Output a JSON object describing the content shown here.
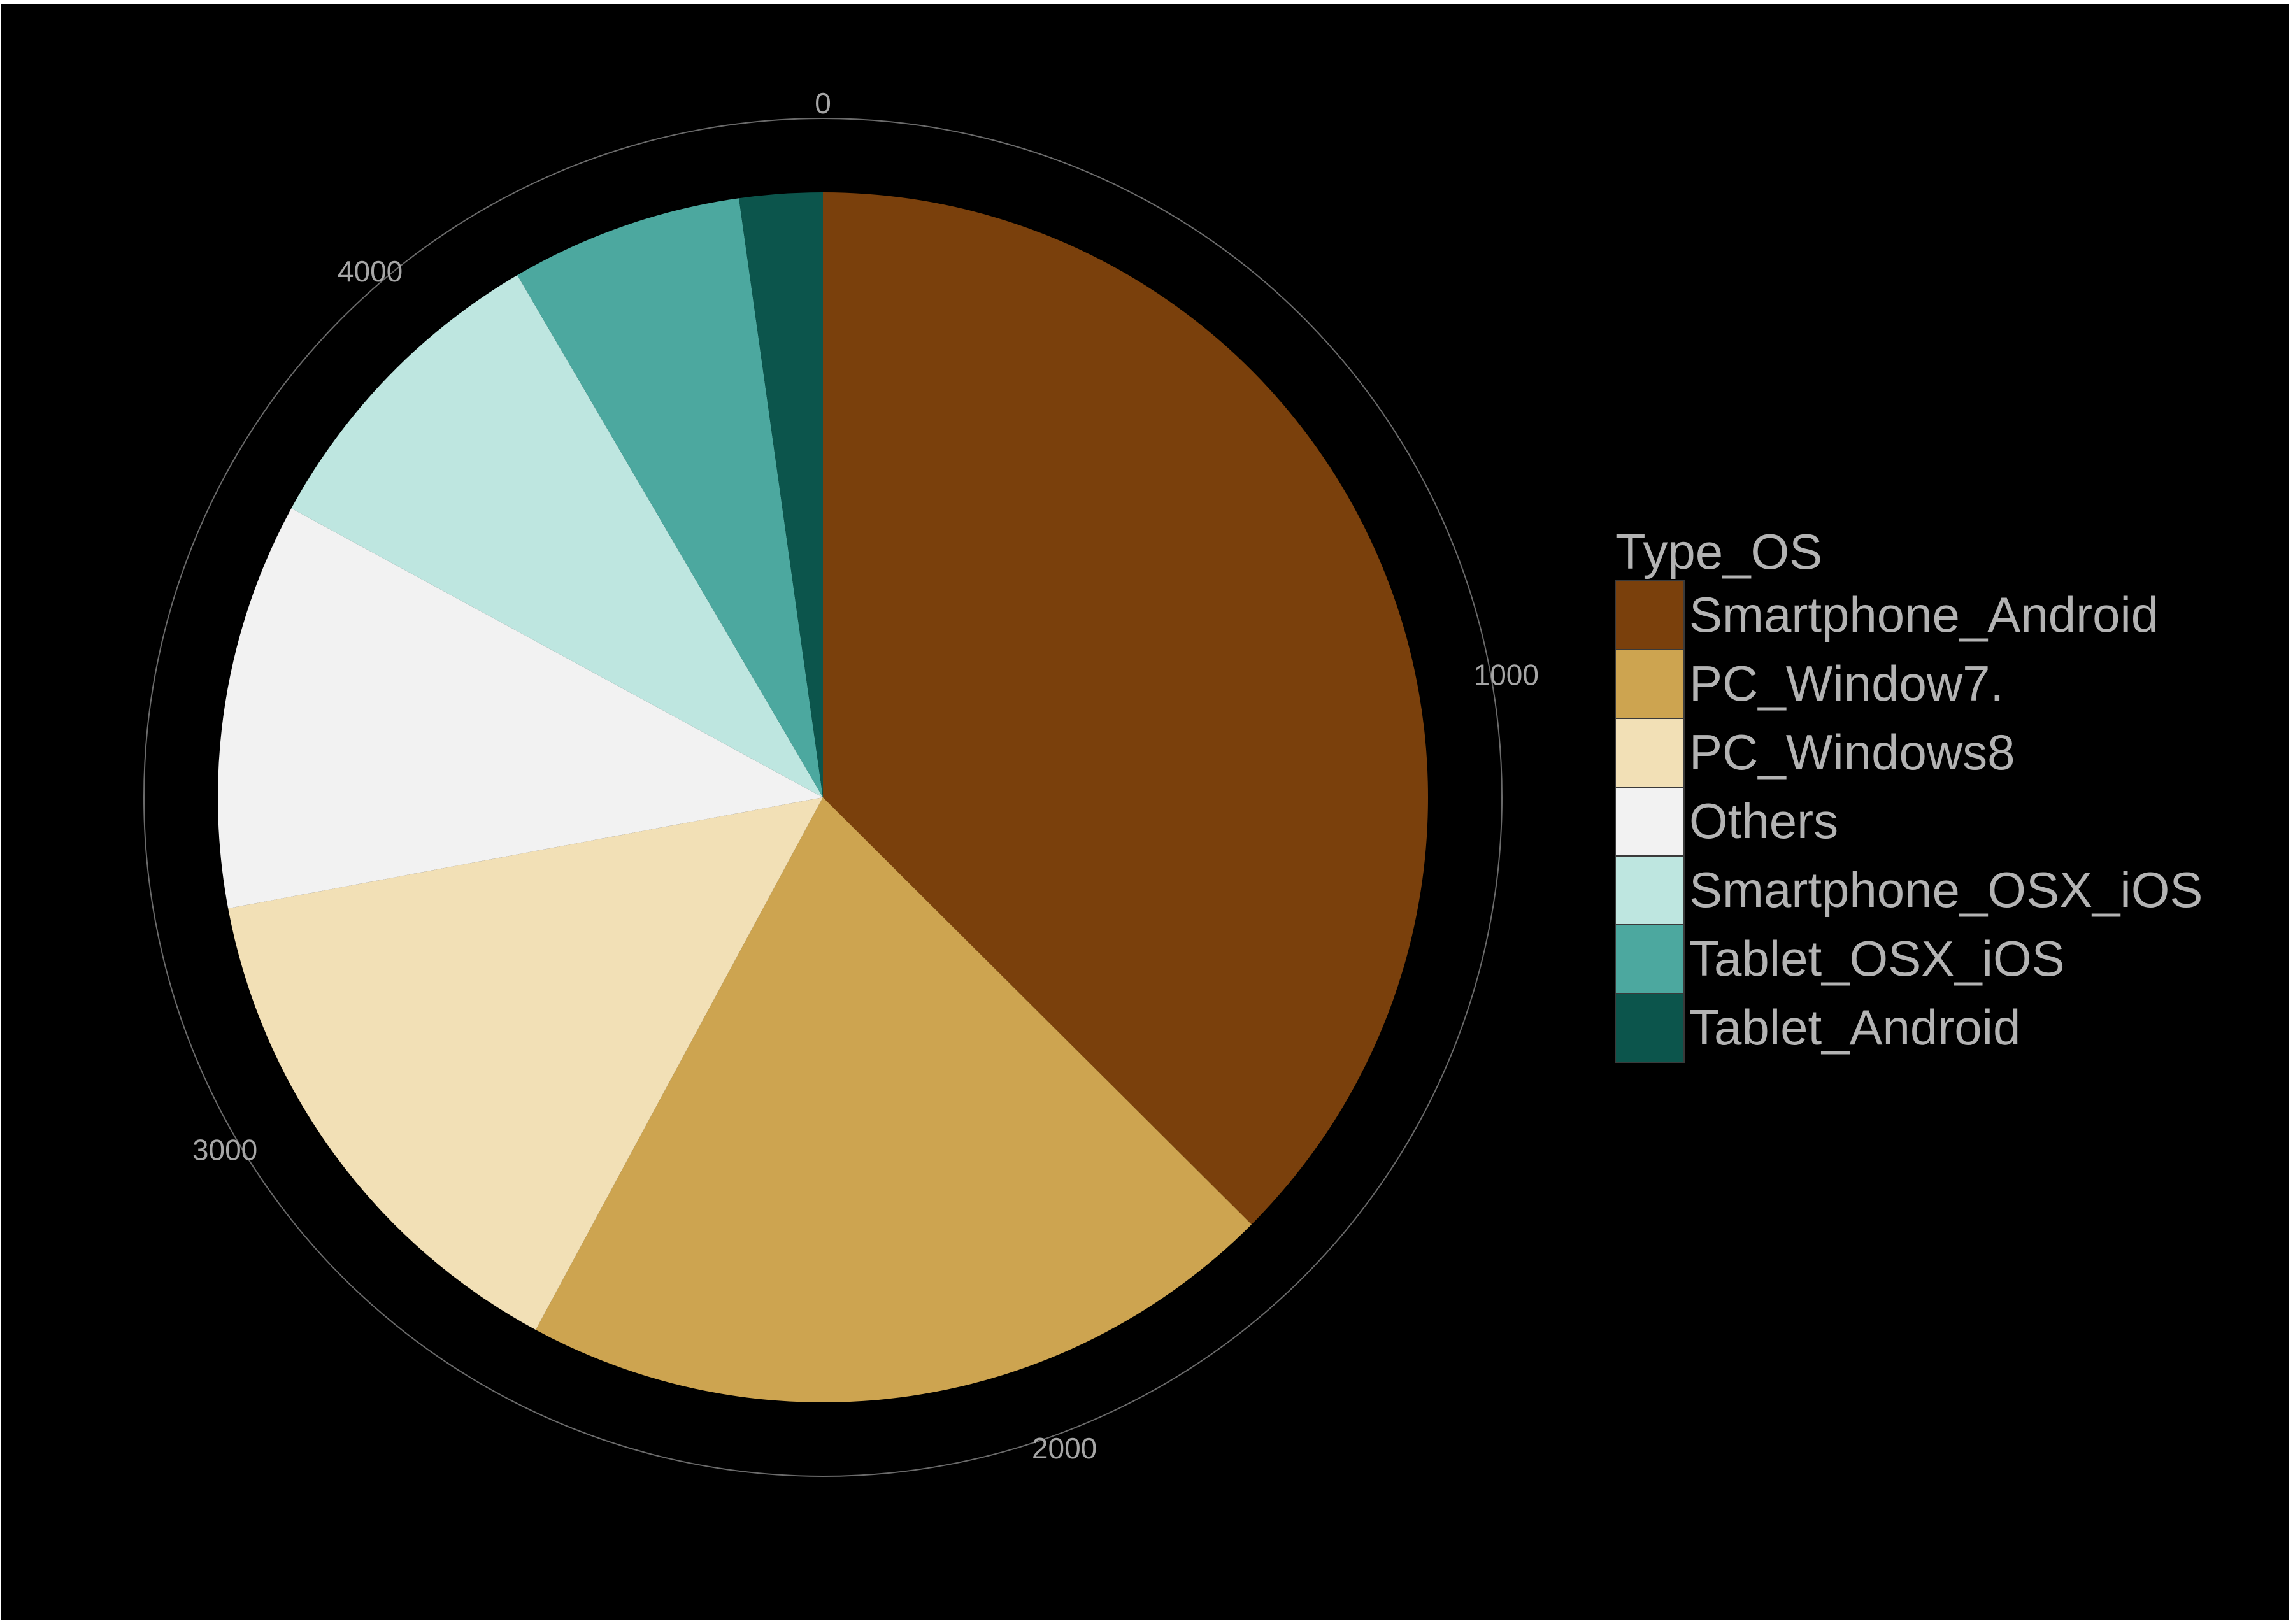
{
  "chart_data": {
    "type": "pie",
    "legend_title": "Type_OS",
    "legend_position": "right",
    "axis_ticks": [
      "0",
      "1000",
      "2000",
      "3000",
      "4000"
    ],
    "axis_tick_values": [
      0,
      1000,
      2000,
      3000,
      4000
    ],
    "total": 4510,
    "categories": [
      "Smartphone_Android",
      "PC_Window7.",
      "PC_Windows8",
      "Others",
      "Smartphone_OSX_iOS",
      "Tablet_OSX_iOS",
      "Tablet_Android"
    ],
    "values": [
      1690,
      920,
      640,
      490,
      390,
      280,
      100
    ],
    "colors": [
      "#7a400c",
      "#cda450",
      "#f2e0b6",
      "#f2f2f2",
      "#bee6e0",
      "#4ca89f",
      "#0c554c"
    ]
  }
}
